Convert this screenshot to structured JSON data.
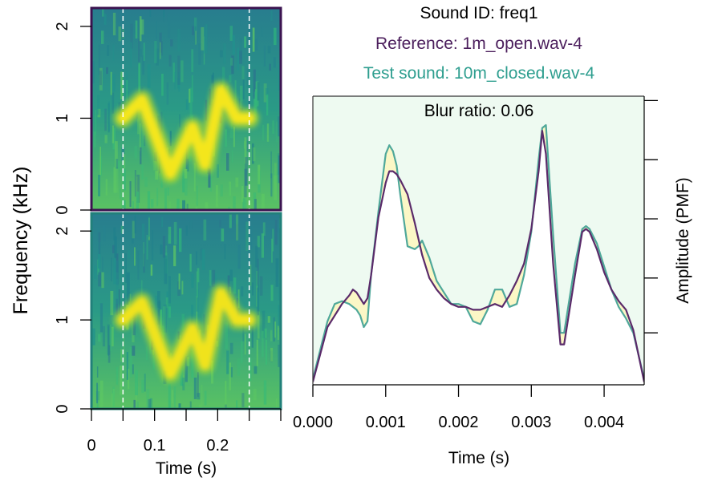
{
  "colors": {
    "reference": "#4b1e5c",
    "test": "#2e9e8f",
    "plot_bg": "#eefaf1",
    "diff_fill": "#fbf7c6",
    "spec_border_top": "#3b1350",
    "spec_border_bottom": "#21807a",
    "axis": "#000000"
  },
  "chart_data": [
    {
      "type": "heatmap",
      "name": "reference-spectrogram",
      "ylabel": "Frequency (kHz)",
      "xlabel": "",
      "yticks": [
        "0",
        "1",
        "2"
      ],
      "ylim": [
        0,
        2.2
      ],
      "xlim": [
        0,
        0.3
      ],
      "selection_lines_s": [
        0.05,
        0.25
      ],
      "contour_khz": {
        "t": [
          0.05,
          0.08,
          0.125,
          0.16,
          0.18,
          0.205,
          0.23,
          0.25
        ],
        "f": [
          1.0,
          1.2,
          0.4,
          0.9,
          0.5,
          1.3,
          1.0,
          1.0
        ]
      }
    },
    {
      "type": "heatmap",
      "name": "test-spectrogram",
      "ylabel": "Frequency (kHz)",
      "xlabel": "Time (s)",
      "yticks": [
        "0",
        "1",
        "2"
      ],
      "xticks": [
        "0",
        "0.1",
        "0.2"
      ],
      "ylim": [
        0,
        2.2
      ],
      "xlim": [
        0,
        0.3
      ],
      "selection_lines_s": [
        0.05,
        0.25
      ],
      "contour_khz": {
        "t": [
          0.05,
          0.08,
          0.125,
          0.16,
          0.18,
          0.205,
          0.23,
          0.25
        ],
        "f": [
          1.0,
          1.2,
          0.4,
          0.9,
          0.5,
          1.3,
          1.0,
          1.0
        ]
      }
    },
    {
      "type": "area",
      "name": "amplitude-envelope",
      "title_lines": [
        "Sound ID: freq1",
        "Reference: 1m_open.wav-4",
        "Test sound: 10m_closed.wav-4"
      ],
      "annotation": "Blur ratio: 0.06",
      "xlabel": "Time (s)",
      "ylabel": "Amplitude (PMF)",
      "xticks": [
        "0.000",
        "0.001",
        "0.002",
        "0.003",
        "0.004"
      ],
      "xlim": [
        0,
        0.00455
      ],
      "ylim": [
        0,
        1
      ],
      "series": [
        {
          "name": "Reference: 1m_open.wav-4",
          "x": [
            0,
            0.0002,
            0.0004,
            0.0005,
            0.00055,
            0.0006,
            0.00065,
            0.0007,
            0.00075,
            0.0008,
            0.0009,
            0.001,
            0.00105,
            0.0011,
            0.00115,
            0.0012,
            0.0013,
            0.0014,
            0.0015,
            0.0016,
            0.0017,
            0.0018,
            0.0019,
            0.002,
            0.0021,
            0.0022,
            0.0023,
            0.0024,
            0.0025,
            0.0026,
            0.0027,
            0.0028,
            0.0029,
            0.003,
            0.0031,
            0.00315,
            0.0032,
            0.0033,
            0.0034,
            0.00345,
            0.0035,
            0.0036,
            0.0037,
            0.00375,
            0.0038,
            0.0039,
            0.004,
            0.0041,
            0.0042,
            0.0043,
            0.0044,
            0.00455
          ],
          "y": [
            0.01,
            0.2,
            0.28,
            0.31,
            0.33,
            0.32,
            0.3,
            0.28,
            0.3,
            0.38,
            0.58,
            0.7,
            0.74,
            0.74,
            0.73,
            0.71,
            0.66,
            0.56,
            0.45,
            0.37,
            0.33,
            0.3,
            0.28,
            0.27,
            0.27,
            0.26,
            0.26,
            0.27,
            0.28,
            0.27,
            0.31,
            0.36,
            0.42,
            0.54,
            0.74,
            0.88,
            0.8,
            0.42,
            0.14,
            0.14,
            0.22,
            0.38,
            0.53,
            0.54,
            0.53,
            0.47,
            0.39,
            0.33,
            0.29,
            0.26,
            0.19,
            0.01
          ]
        },
        {
          "name": "Test sound: 10m_closed.wav-4",
          "x": [
            0,
            0.0002,
            0.0003,
            0.0004,
            0.0005,
            0.0006,
            0.00065,
            0.0007,
            0.00075,
            0.0008,
            0.0009,
            0.001,
            0.00105,
            0.0011,
            0.00115,
            0.0012,
            0.0013,
            0.0014,
            0.00145,
            0.0015,
            0.0016,
            0.0017,
            0.0018,
            0.0019,
            0.002,
            0.0021,
            0.0022,
            0.0023,
            0.0024,
            0.0025,
            0.0026,
            0.0027,
            0.0028,
            0.0029,
            0.003,
            0.0031,
            0.00315,
            0.0032,
            0.0033,
            0.0034,
            0.00345,
            0.0035,
            0.0036,
            0.0037,
            0.00375,
            0.0038,
            0.0039,
            0.004,
            0.0041,
            0.0042,
            0.0043,
            0.0044,
            0.00455
          ],
          "y": [
            0.02,
            0.22,
            0.28,
            0.29,
            0.28,
            0.26,
            0.24,
            0.2,
            0.22,
            0.38,
            0.6,
            0.8,
            0.83,
            0.81,
            0.76,
            0.66,
            0.48,
            0.47,
            0.48,
            0.5,
            0.44,
            0.36,
            0.32,
            0.28,
            0.28,
            0.27,
            0.22,
            0.21,
            0.26,
            0.33,
            0.33,
            0.27,
            0.28,
            0.38,
            0.53,
            0.78,
            0.89,
            0.9,
            0.52,
            0.18,
            0.18,
            0.26,
            0.42,
            0.54,
            0.55,
            0.54,
            0.49,
            0.41,
            0.33,
            0.27,
            0.23,
            0.18,
            0.02
          ]
        }
      ]
    }
  ]
}
